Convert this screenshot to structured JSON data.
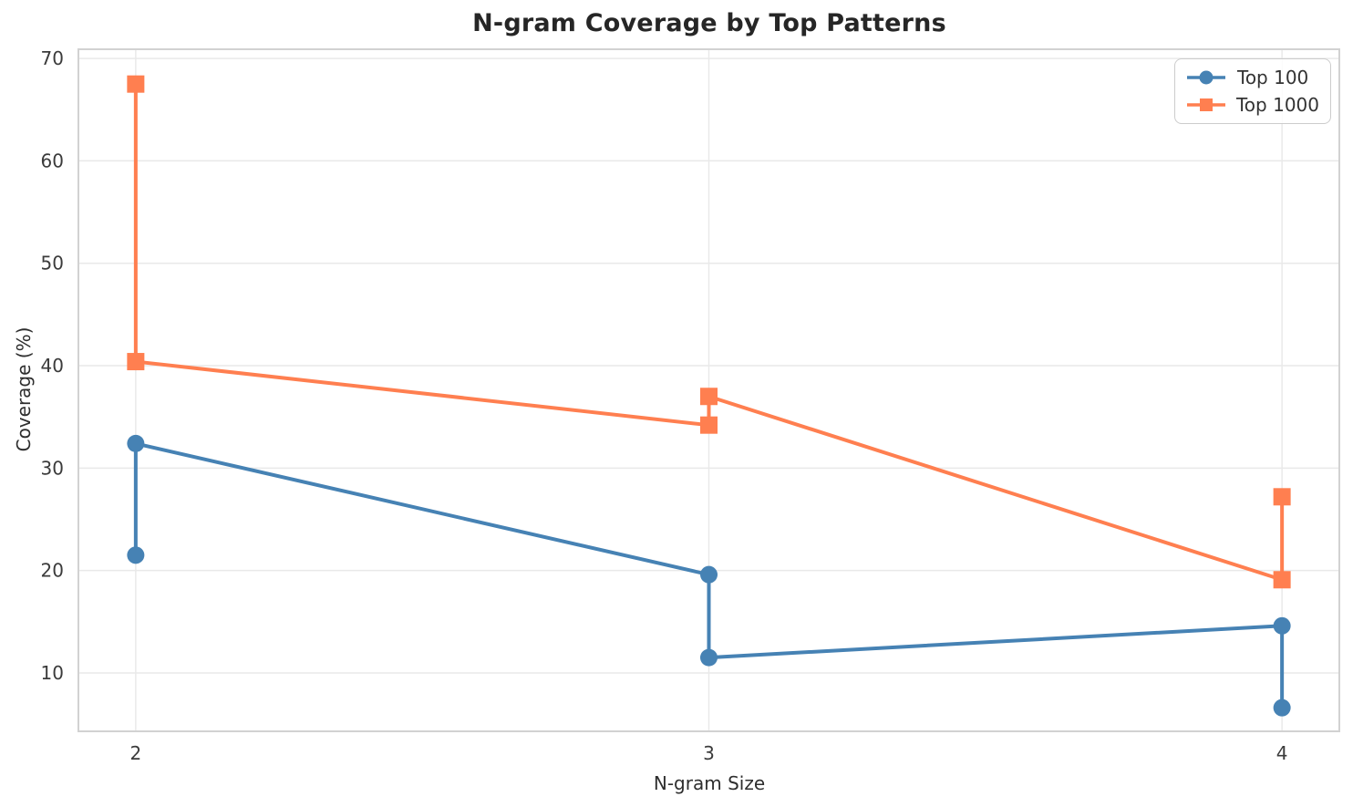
{
  "chart_data": {
    "type": "line",
    "title": "N-gram Coverage by Top Patterns",
    "xlabel": "N-gram Size",
    "ylabel": "Coverage (%)",
    "xticks": [
      2,
      3,
      4
    ],
    "yticks": [
      10,
      20,
      30,
      40,
      50,
      60,
      70
    ],
    "xlim": [
      1.9,
      4.1
    ],
    "ylim": [
      4.3,
      70.9
    ],
    "grid": true,
    "legend_position": "upper right",
    "series": [
      {
        "name": "Top 100",
        "color": "#4682B4",
        "marker": "circle",
        "points": [
          [
            2,
            21.5
          ],
          [
            2,
            32.4
          ],
          [
            3,
            19.6
          ],
          [
            3,
            11.5
          ],
          [
            4,
            14.6
          ],
          [
            4,
            6.6
          ]
        ]
      },
      {
        "name": "Top 1000",
        "color": "#FF7F50",
        "marker": "square",
        "points": [
          [
            2,
            67.5
          ],
          [
            2,
            40.4
          ],
          [
            3,
            34.2
          ],
          [
            3,
            37.0
          ],
          [
            4,
            19.1
          ],
          [
            4,
            27.2
          ]
        ]
      }
    ]
  },
  "colors": {
    "grid": "#e9e9e9",
    "spine": "#d2d2d2",
    "tick_label": "#3b3b3b",
    "title": "#262626",
    "background": "#ffffff"
  }
}
